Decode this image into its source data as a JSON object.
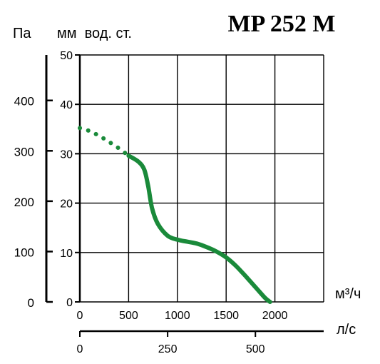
{
  "chart_data": {
    "type": "line",
    "title": "MP 252 M",
    "unit_left_label": "Па",
    "unit_inner_label": "мм  вод. ст.",
    "x_unit_label": "м³/ч",
    "x2_unit_label": "л/с",
    "xlim": [
      0,
      2500
    ],
    "ylim_mm": [
      0,
      50
    ],
    "x_ticks": [
      "0",
      "500",
      "1000",
      "1500",
      "2000"
    ],
    "x_tick_values": [
      0,
      500,
      1000,
      1500,
      2000
    ],
    "y_mm_ticks": [
      "0",
      "10",
      "20",
      "30",
      "40",
      "50"
    ],
    "y_mm_tick_values": [
      0,
      10,
      20,
      30,
      40,
      50
    ],
    "y_pa_ticks": [
      "0",
      "100",
      "200",
      "300",
      "400"
    ],
    "y_pa_tick_values": [
      0,
      100,
      200,
      300,
      400
    ],
    "x2_ticks": [
      "0",
      "250",
      "500"
    ],
    "x2_tick_values": [
      0,
      250,
      500
    ],
    "grid": true,
    "series": [
      {
        "color": "#1a8a3a",
        "style": "dotted",
        "x": [
          0,
          100,
          200,
          300,
          400,
          500
        ],
        "y": [
          35.2,
          34.6,
          33.6,
          32.4,
          31.1,
          29.6
        ]
      },
      {
        "color": "#1a8a3a",
        "style": "solid",
        "x": [
          500,
          600,
          660,
          700,
          740,
          800,
          900,
          1000,
          1100,
          1200,
          1300,
          1400,
          1500,
          1600,
          1700,
          1800,
          1900,
          1950
        ],
        "y": [
          29.6,
          28.4,
          26.8,
          23.5,
          19.0,
          15.8,
          13.4,
          12.6,
          12.2,
          11.8,
          11.1,
          10.2,
          9.0,
          7.3,
          5.2,
          3.0,
          0.8,
          0
        ]
      }
    ]
  }
}
